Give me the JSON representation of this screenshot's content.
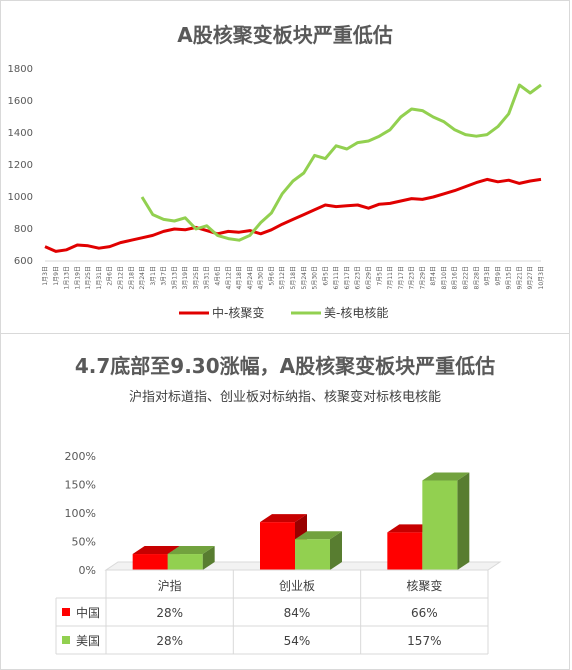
{
  "chart_data": [
    {
      "type": "line",
      "title": "A股核聚变板块严重低估",
      "ylim": [
        600,
        1800
      ],
      "yticks": [
        600,
        800,
        1000,
        1200,
        1400,
        1600,
        1800
      ],
      "grid": false,
      "legend_position": "bottom",
      "x": [
        "1月3日",
        "1月9日",
        "1月13日",
        "1月19日",
        "1月25日",
        "1月31日",
        "2月6日",
        "2月12日",
        "2月18日",
        "2月24日",
        "3月1日",
        "3月7日",
        "3月13日",
        "3月19日",
        "3月25日",
        "3月31日",
        "4月6日",
        "4月12日",
        "4月18日",
        "4月24日",
        "4月30日",
        "5月6日",
        "5月12日",
        "5月18日",
        "5月24日",
        "5月30日",
        "6月5日",
        "6月11日",
        "6月17日",
        "6月23日",
        "6月29日",
        "7月5日",
        "7月11日",
        "7月17日",
        "7月23日",
        "7月29日",
        "8月4日",
        "8月10日",
        "8月16日",
        "8月22日",
        "8月28日",
        "9月3日",
        "9月9日",
        "9月15日",
        "9月21日",
        "9月27日",
        "10月3日"
      ],
      "series": [
        {
          "name": "中-核聚变",
          "color": "#e00000",
          "values": [
            690,
            660,
            670,
            700,
            695,
            680,
            690,
            715,
            730,
            745,
            760,
            785,
            800,
            795,
            810,
            790,
            770,
            785,
            780,
            790,
            770,
            795,
            830,
            860,
            890,
            920,
            950,
            940,
            945,
            950,
            930,
            955,
            960,
            975,
            990,
            985,
            1000,
            1020,
            1040,
            1065,
            1090,
            1110,
            1095,
            1105,
            1085,
            1100,
            1110
          ]
        },
        {
          "name": "美-核电核能",
          "color": "#92d050",
          "values": [
            null,
            null,
            null,
            null,
            null,
            null,
            null,
            null,
            null,
            1000,
            890,
            860,
            850,
            870,
            800,
            820,
            760,
            740,
            730,
            760,
            840,
            900,
            1020,
            1100,
            1150,
            1260,
            1240,
            1320,
            1300,
            1340,
            1350,
            1380,
            1420,
            1500,
            1550,
            1540,
            1500,
            1470,
            1420,
            1390,
            1380,
            1390,
            1440,
            1520,
            1700,
            1650,
            1700
          ]
        }
      ]
    },
    {
      "type": "bar",
      "title": "4.7底部至9.30涨幅，A股核聚变板块严重低估",
      "subtitle": "沪指对标道指、创业板对标纳指、核聚变对标核电核能",
      "categories": [
        "沪指",
        "创业板",
        "核聚变"
      ],
      "ylim": [
        0,
        200
      ],
      "yticks": [
        "0%",
        "50%",
        "100%",
        "150%",
        "200%"
      ],
      "series": [
        {
          "name": "中国",
          "color": "#ff0000",
          "values": [
            28,
            84,
            66
          ],
          "labels": [
            "28%",
            "84%",
            "66%"
          ]
        },
        {
          "name": "美国",
          "color": "#92d050",
          "values": [
            28,
            54,
            157
          ],
          "labels": [
            "28%",
            "54%",
            "157%"
          ]
        }
      ]
    }
  ]
}
